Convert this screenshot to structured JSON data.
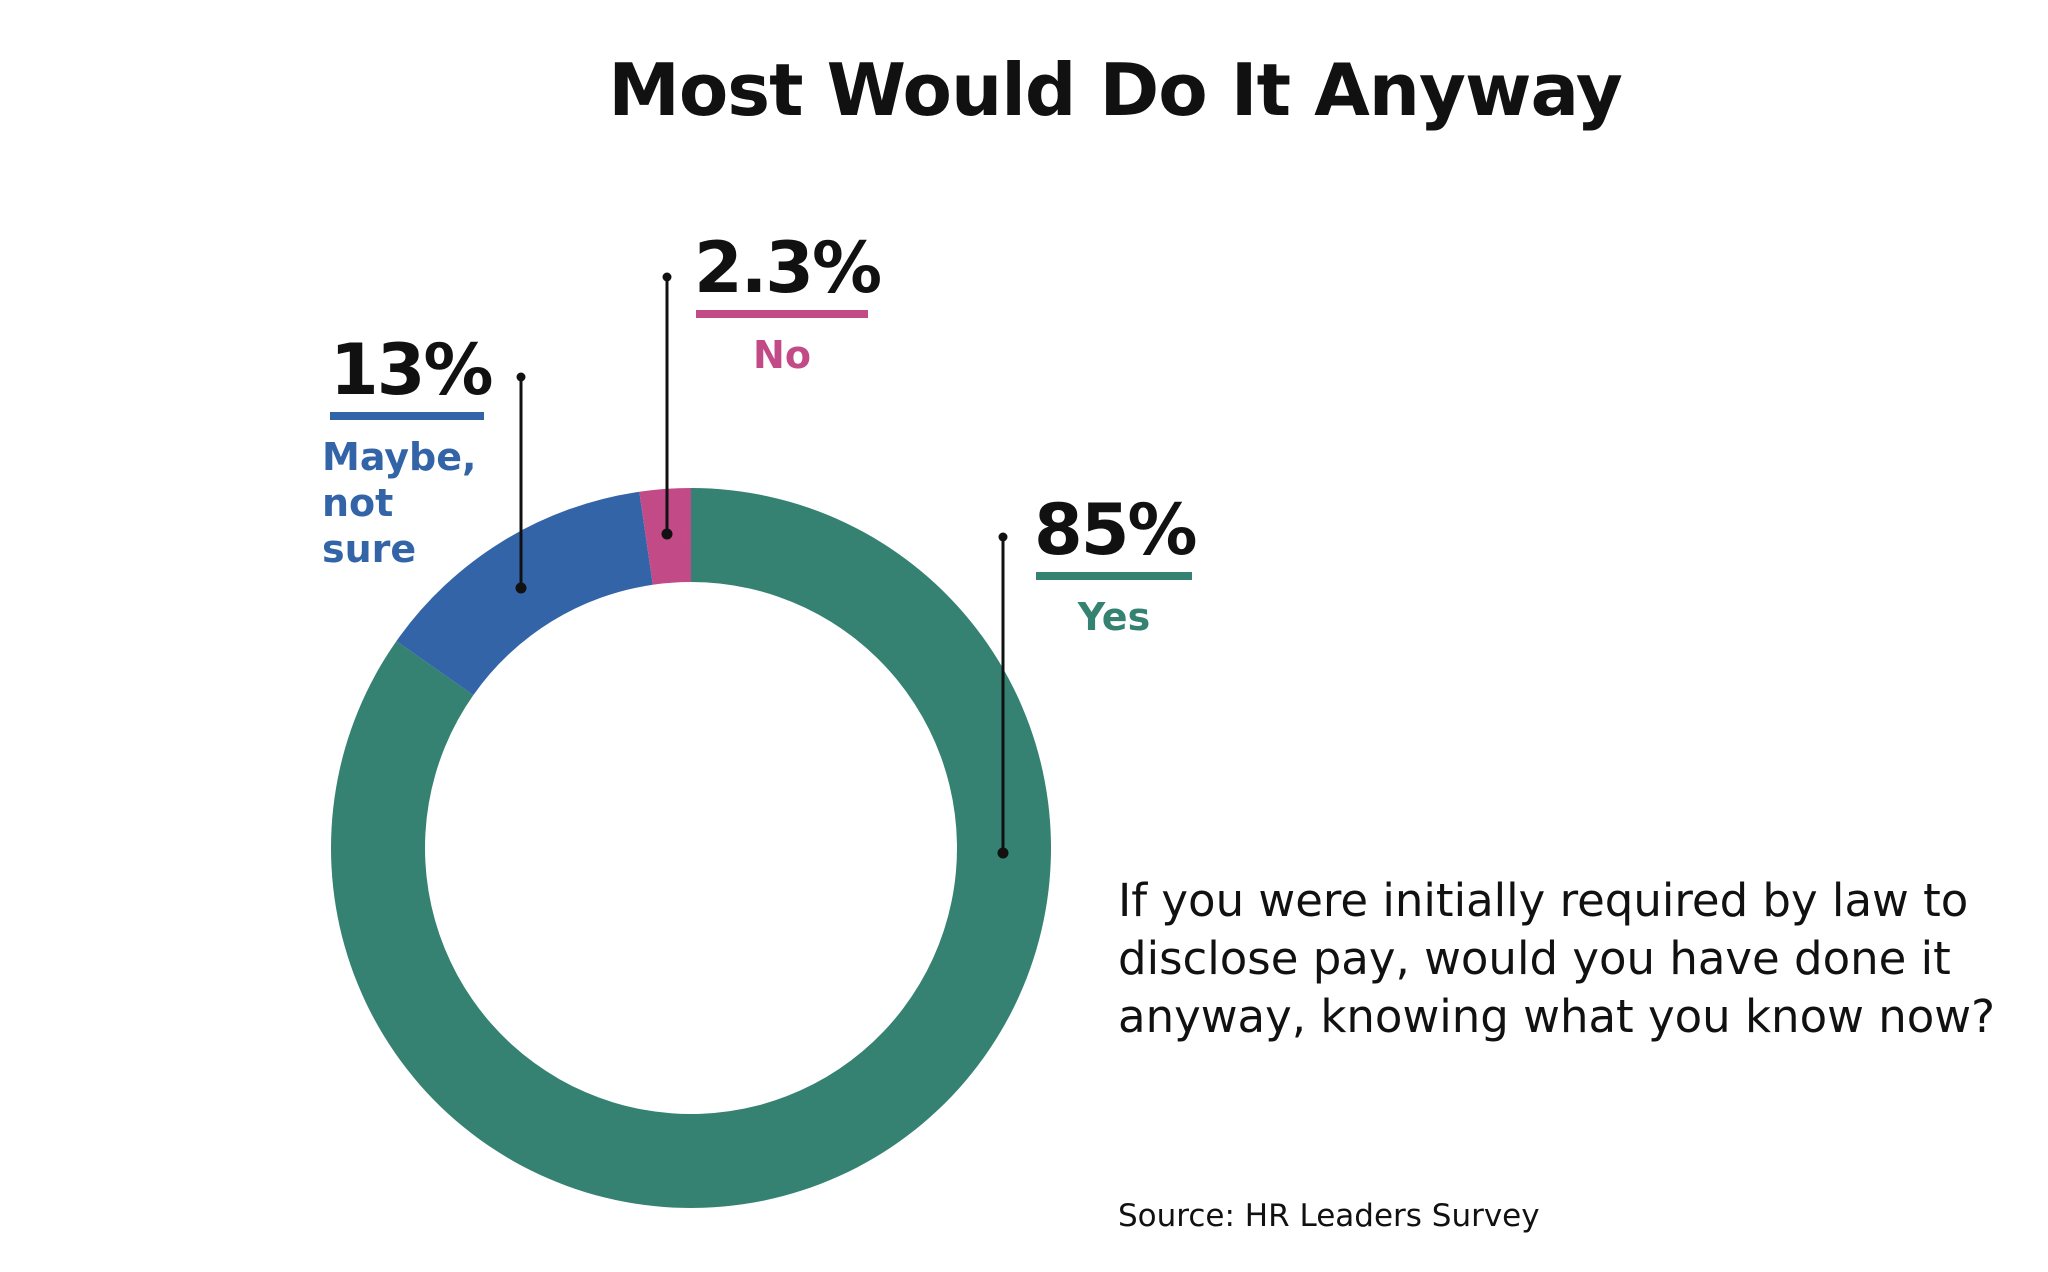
{
  "title": "Most Would Do It Anyway",
  "question": "If you were initially required by law to disclose pay, would you have done it anyway, knowing what you know now?",
  "source": "Source: HR Leaders Survey",
  "colors": {
    "yes": "#358272",
    "maybe": "#3464a8",
    "no": "#c24a86"
  },
  "chart_data": {
    "type": "pie",
    "donut": true,
    "categories": [
      "Yes",
      "Maybe, not sure",
      "No"
    ],
    "values": [
      85,
      13,
      2.3
    ],
    "labels": [
      "85%",
      "13%",
      "2.3%"
    ],
    "title": "Most Would Do It Anyway"
  }
}
